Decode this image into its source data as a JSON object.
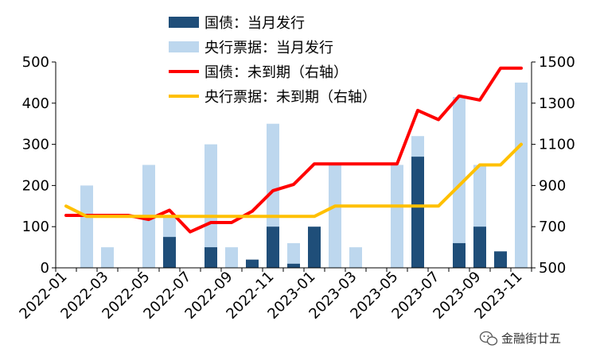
{
  "chart_data": {
    "type": "bar+line",
    "title": "",
    "categories": [
      "2022-01",
      "2022-02",
      "2022-03",
      "2022-04",
      "2022-05",
      "2022-06",
      "2022-07",
      "2022-08",
      "2022-09",
      "2022-10",
      "2022-11",
      "2022-12",
      "2023-01",
      "2023-02",
      "2023-03",
      "2023-04",
      "2023-05",
      "2023-06",
      "2023-07",
      "2023-08",
      "2023-09",
      "2023-10",
      "2023-11"
    ],
    "x_tick_labels": [
      "2022-01",
      "2022-03",
      "2022-05",
      "2022-07",
      "2022-09",
      "2022-11",
      "2023-01",
      "2023-03",
      "2023-05",
      "2023-07",
      "2023-09",
      "2023-11"
    ],
    "left_axis": {
      "ylim": [
        0,
        500
      ],
      "ticks": [
        "0",
        "100",
        "200",
        "300",
        "400",
        "500"
      ]
    },
    "right_axis": {
      "ylim": [
        500,
        1500
      ],
      "ticks": [
        "500",
        "700",
        "900",
        "1100",
        "1300",
        "1500"
      ]
    },
    "series": [
      {
        "name": "国债：当月发行",
        "kind": "bar",
        "axis": "left",
        "color": "#1f4e79",
        "values": [
          0,
          0,
          0,
          0,
          0,
          75,
          0,
          50,
          0,
          20,
          100,
          10,
          100,
          0,
          0,
          0,
          0,
          270,
          0,
          60,
          100,
          40,
          0
        ]
      },
      {
        "name": "央行票据：当月发行",
        "kind": "bar",
        "axis": "left",
        "color": "#bdd7ee",
        "values": [
          0,
          200,
          50,
          0,
          250,
          125,
          0,
          300,
          50,
          0,
          350,
          60,
          0,
          250,
          50,
          0,
          250,
          320,
          0,
          415,
          250,
          0,
          450
        ]
      },
      {
        "name": "国债：未到期（右轴）",
        "kind": "line",
        "axis": "right",
        "color": "#ff0000",
        "values": [
          755,
          755,
          755,
          755,
          735,
          780,
          675,
          720,
          720,
          775,
          875,
          905,
          1005,
          1005,
          1005,
          1005,
          1005,
          1265,
          1220,
          1335,
          1315,
          1470,
          1470
        ]
      },
      {
        "name": "央行票据：未到期（右轴）",
        "kind": "line",
        "axis": "right",
        "color": "#ffc000",
        "values": [
          800,
          750,
          750,
          750,
          750,
          750,
          750,
          750,
          750,
          750,
          750,
          750,
          750,
          800,
          800,
          800,
          800,
          800,
          800,
          900,
          1000,
          1000,
          1100
        ]
      }
    ],
    "legend_position": "top-center",
    "grid": false
  },
  "watermark": {
    "label": "金融街廿五",
    "icon": "wechat-icon"
  }
}
